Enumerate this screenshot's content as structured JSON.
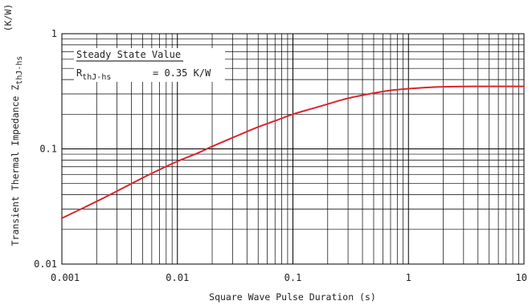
{
  "chart_data": {
    "type": "line",
    "title": "",
    "xlabel": "Square Wave Pulse Duration (s)",
    "ylabel": "Transient Thermal Impedance Z",
    "ylabel_subscript": "thJ-hs",
    "yunit": "(K/W)",
    "xscale": "log",
    "yscale": "log",
    "xlim": [
      0.001,
      10
    ],
    "ylim": [
      0.01,
      1
    ],
    "grid": true,
    "x_ticks": [
      "0.001",
      "0.01",
      "0.1",
      "1",
      "10"
    ],
    "y_ticks": [
      "0.01",
      "0.1",
      "1"
    ],
    "line_color": "#d9262d",
    "series": [
      {
        "x": [
          0.001,
          0.002,
          0.003,
          0.005,
          0.007,
          0.01,
          0.015,
          0.02,
          0.03,
          0.05,
          0.07,
          0.1,
          0.15,
          0.2,
          0.3,
          0.5,
          0.7,
          1,
          1.5,
          2,
          3,
          5,
          7,
          10
        ],
        "y": [
          0.025,
          0.035,
          0.043,
          0.056,
          0.066,
          0.078,
          0.092,
          0.105,
          0.125,
          0.155,
          0.175,
          0.2,
          0.225,
          0.245,
          0.275,
          0.305,
          0.322,
          0.333,
          0.342,
          0.346,
          0.348,
          0.349,
          0.349,
          0.349
        ]
      }
    ],
    "annotation": {
      "line1": "Steady State Value",
      "line2_prefix": "R",
      "line2_subscript": "thJ-hs",
      "line2_value": "= 0.35 K/W"
    }
  }
}
